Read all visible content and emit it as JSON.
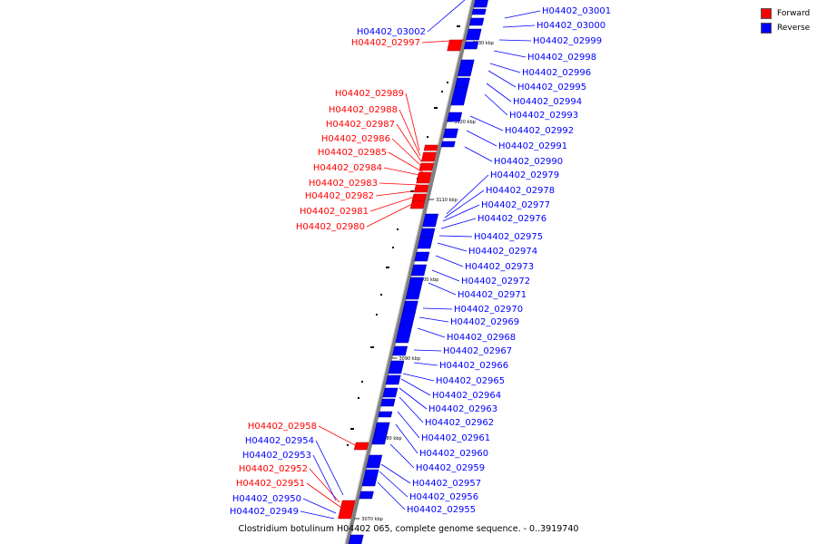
{
  "legend": {
    "items": [
      {
        "label": "Forward",
        "color": "#ff0000"
      },
      {
        "label": "Reverse",
        "color": "#0000ff"
      }
    ]
  },
  "caption": "Clostridium botulinum H04402 065, complete genome sequence. - 0..3919740",
  "colors": {
    "forward": "#ff0000",
    "reverse": "#0000ff",
    "backbone": "#808080"
  },
  "ruler": {
    "unit": "kbp",
    "ticks": [
      "3130 kbp",
      "3120 kbp",
      "3110 kbp",
      "3100 kbp",
      "3090 kbp",
      "3080 kbp",
      "3070 kbp"
    ]
  },
  "features": {
    "forward": [
      "H04402_02997",
      "H04402_02989",
      "H04402_02988",
      "H04402_02987",
      "H04402_02986",
      "H04402_02985",
      "H04402_02984",
      "H04402_02983",
      "H04402_02982",
      "H04402_02981",
      "H04402_02980",
      "H04402_02958",
      "H04402_02952",
      "H04402_02951"
    ],
    "reverse_left": [
      "H04402_03002",
      "H04402_02954",
      "H04402_02953",
      "H04402_02950",
      "H04402_02949"
    ],
    "reverse_right": [
      "H04402_03001",
      "H04402_03000",
      "H04402_02999",
      "H04402_02998",
      "H04402_02996",
      "H04402_02995",
      "H04402_02994",
      "H04402_02993",
      "H04402_02992",
      "H04402_02991",
      "H04402_02990",
      "H04402_02979",
      "H04402_02978",
      "H04402_02977",
      "H04402_02976",
      "H04402_02975",
      "H04402_02974",
      "H04402_02973",
      "H04402_02972",
      "H04402_02971",
      "H04402_02970",
      "H04402_02969",
      "H04402_02968",
      "H04402_02967",
      "H04402_02966",
      "H04402_02965",
      "H04402_02964",
      "H04402_02963",
      "H04402_02962",
      "H04402_02961",
      "H04402_02960",
      "H04402_02959",
      "H04402_02957",
      "H04402_02956",
      "H04402_02955"
    ]
  }
}
